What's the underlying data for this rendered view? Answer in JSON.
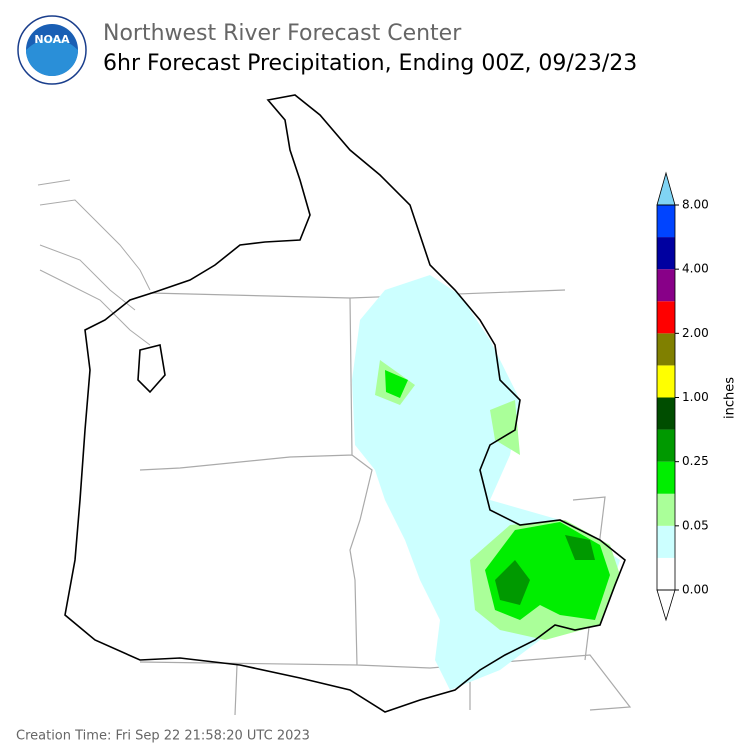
{
  "header": {
    "logo_text": "NOAA",
    "title": "Northwest River Forecast Center",
    "subtitle": "6hr Forecast Precipitation, Ending 00Z, 09/23/23"
  },
  "colorbar": {
    "label": "inches",
    "ticks": [
      {
        "value": 0,
        "label": "0.00"
      },
      {
        "value": 0.05,
        "label": "0.05"
      },
      {
        "value": 0.25,
        "label": "0.25"
      },
      {
        "value": 1,
        "label": "1.00"
      },
      {
        "value": 2,
        "label": "2.00"
      },
      {
        "value": 4,
        "label": "4.00"
      },
      {
        "value": 8,
        "label": "8.00"
      }
    ],
    "colors": [
      "#ffffff",
      "#ccffff",
      "#aaff99",
      "#00ee00",
      "#009900",
      "#004d00",
      "#ffff00",
      "#808000",
      "#ff0000",
      "#880088",
      "#0000a0",
      "#0044ff"
    ],
    "under_color": "#ffffff",
    "over_color": "#80d4f4"
  },
  "footer": {
    "creation_time": "Creation Time: Fri Sep 22 21:58:20 UTC 2023"
  }
}
